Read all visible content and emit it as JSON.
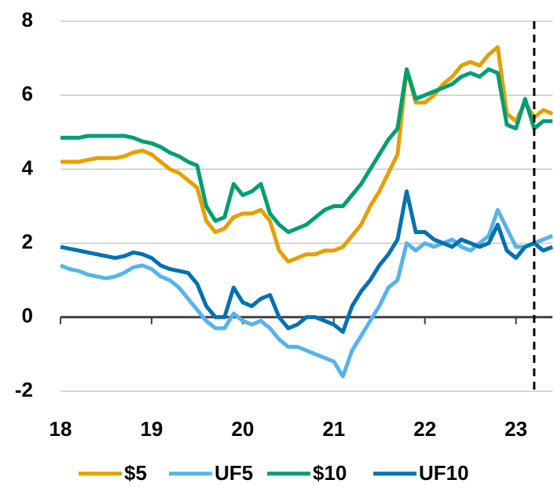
{
  "chart_data": {
    "type": "line",
    "x": [
      18.0,
      18.1,
      18.2,
      18.3,
      18.4,
      18.5,
      18.6,
      18.7,
      18.8,
      18.9,
      19.0,
      19.1,
      19.2,
      19.3,
      19.4,
      19.5,
      19.6,
      19.7,
      19.8,
      19.9,
      20.0,
      20.1,
      20.2,
      20.3,
      20.4,
      20.5,
      20.6,
      20.7,
      20.8,
      20.9,
      21.0,
      21.1,
      21.2,
      21.3,
      21.4,
      21.5,
      21.6,
      21.7,
      21.8,
      21.9,
      22.0,
      22.1,
      22.2,
      22.3,
      22.4,
      22.5,
      22.6,
      22.7,
      22.8,
      22.9,
      23.0,
      23.1,
      23.2,
      23.3,
      23.4
    ],
    "series": [
      {
        "name": "$5",
        "color": "#e69f00",
        "values": [
          4.2,
          4.2,
          4.2,
          4.25,
          4.3,
          4.3,
          4.3,
          4.35,
          4.45,
          4.5,
          4.4,
          4.2,
          4.0,
          3.9,
          3.7,
          3.5,
          2.6,
          2.3,
          2.4,
          2.7,
          2.8,
          2.8,
          2.9,
          2.6,
          1.8,
          1.5,
          1.6,
          1.7,
          1.7,
          1.8,
          1.8,
          1.9,
          2.2,
          2.5,
          3.0,
          3.4,
          3.9,
          4.4,
          6.7,
          5.8,
          5.8,
          6.0,
          6.3,
          6.5,
          6.8,
          6.9,
          6.8,
          7.1,
          7.3,
          5.5,
          5.3,
          5.8,
          5.4,
          5.6,
          5.5
        ]
      },
      {
        "name": "UF5",
        "color": "#56b4e9",
        "values": [
          1.4,
          1.3,
          1.25,
          1.15,
          1.1,
          1.05,
          1.1,
          1.2,
          1.35,
          1.4,
          1.3,
          1.1,
          1.0,
          0.8,
          0.5,
          0.2,
          -0.1,
          -0.3,
          -0.3,
          0.1,
          -0.1,
          -0.2,
          -0.1,
          -0.3,
          -0.6,
          -0.8,
          -0.8,
          -0.9,
          -1.0,
          -1.1,
          -1.2,
          -1.6,
          -0.9,
          -0.5,
          -0.1,
          0.3,
          0.8,
          1.0,
          2.0,
          1.8,
          2.0,
          1.9,
          2.0,
          2.1,
          1.9,
          1.8,
          2.0,
          2.2,
          2.9,
          2.4,
          1.9,
          1.9,
          2.0,
          2.1,
          2.2
        ]
      },
      {
        "name": "$10",
        "color": "#009e73",
        "values": [
          4.85,
          4.85,
          4.85,
          4.9,
          4.9,
          4.9,
          4.9,
          4.9,
          4.85,
          4.75,
          4.7,
          4.6,
          4.45,
          4.35,
          4.2,
          4.1,
          3.0,
          2.6,
          2.7,
          3.6,
          3.3,
          3.4,
          3.6,
          2.8,
          2.5,
          2.3,
          2.4,
          2.5,
          2.7,
          2.9,
          3.0,
          3.0,
          3.3,
          3.6,
          4.0,
          4.4,
          4.8,
          5.1,
          6.7,
          5.9,
          6.0,
          6.1,
          6.2,
          6.3,
          6.5,
          6.6,
          6.5,
          6.7,
          6.6,
          5.2,
          5.1,
          5.9,
          5.1,
          5.3,
          5.3
        ]
      },
      {
        "name": "UF10",
        "color": "#0072b2",
        "values": [
          1.9,
          1.85,
          1.8,
          1.75,
          1.7,
          1.65,
          1.6,
          1.65,
          1.75,
          1.7,
          1.6,
          1.4,
          1.3,
          1.25,
          1.2,
          0.9,
          0.3,
          0.0,
          0.0,
          0.8,
          0.4,
          0.3,
          0.5,
          0.6,
          0.0,
          -0.3,
          -0.2,
          0.0,
          0.0,
          -0.1,
          -0.2,
          -0.4,
          0.3,
          0.7,
          1.0,
          1.4,
          1.7,
          2.1,
          3.4,
          2.3,
          2.3,
          2.1,
          2.0,
          1.9,
          2.1,
          2.0,
          1.9,
          2.0,
          2.5,
          1.8,
          1.6,
          1.9,
          2.0,
          1.8,
          1.9
        ]
      }
    ],
    "xlim": [
      18,
      23.4
    ],
    "xticks": [
      18,
      19,
      20,
      21,
      22,
      23
    ],
    "ylim": [
      -2,
      8
    ],
    "yticks": [
      -2,
      0,
      2,
      4,
      6,
      8
    ],
    "grid": true,
    "vline": 23.2,
    "legend": "bottom"
  }
}
